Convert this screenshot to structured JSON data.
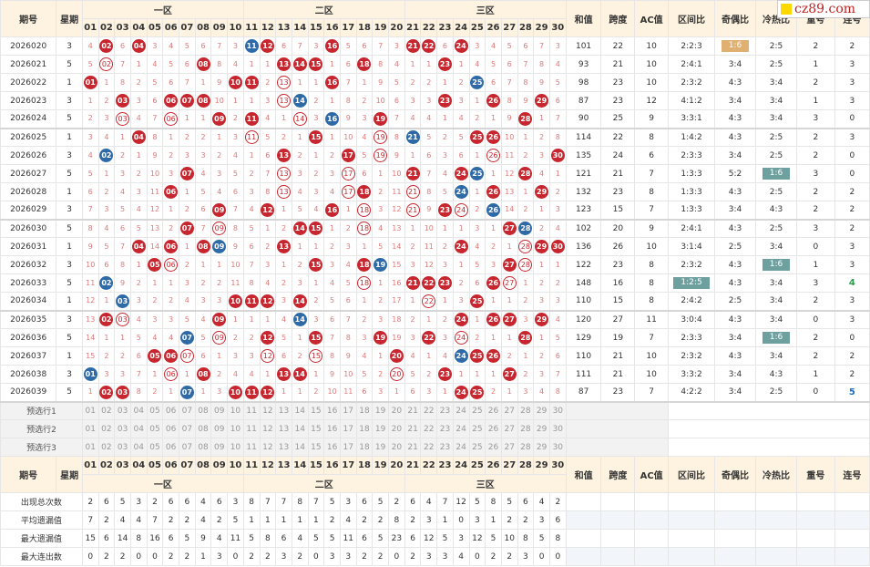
{
  "site": {
    "logo_text": "cz89.com"
  },
  "headers": {
    "issue": "期号",
    "week": "星期",
    "zone1": "一区",
    "zone2": "二区",
    "zone3": "三区",
    "sum": "和值",
    "span": "跨度",
    "ac": "AC值",
    "zone_ratio": "区间比",
    "odd_even": "奇偶比",
    "hot_cold": "冷热比",
    "repeat": "重号",
    "consecutive": "连号"
  },
  "numbers": [
    "01",
    "02",
    "03",
    "04",
    "05",
    "06",
    "07",
    "08",
    "09",
    "10",
    "11",
    "12",
    "13",
    "14",
    "15",
    "16",
    "17",
    "18",
    "19",
    "20",
    "21",
    "22",
    "23",
    "24",
    "25",
    "26",
    "27",
    "28",
    "29",
    "30"
  ],
  "rows": [
    {
      "issue": "2026020",
      "week": "3",
      "balls": [
        2,
        4,
        11,
        12,
        16,
        21,
        22,
        24
      ],
      "blue": [
        11
      ],
      "sum": "101",
      "span": "22",
      "ac": "10",
      "zr": "2:2:3",
      "oe": "1:6",
      "oe_tag": "o",
      "hc": "2:5",
      "rep": "2",
      "con": "2"
    },
    {
      "issue": "2026021",
      "week": "5",
      "balls": [
        2,
        8,
        13,
        14,
        15,
        18,
        23
      ],
      "blue": [
        24
      ],
      "sum": "93",
      "span": "21",
      "ac": "10",
      "zr": "2:4:1",
      "oe": "3:4",
      "hc": "2:5",
      "rep": "1",
      "con": "3"
    },
    {
      "issue": "2026022",
      "week": "1",
      "balls": [
        1,
        10,
        11,
        13,
        16,
        25
      ],
      "blue": [
        25
      ],
      "sum": "98",
      "span": "23",
      "ac": "10",
      "zr": "2:3:2",
      "oe": "4:3",
      "hc": "3:4",
      "rep": "2",
      "con": "3"
    },
    {
      "issue": "2026023",
      "week": "3",
      "balls": [
        3,
        6,
        7,
        8,
        13,
        14,
        23,
        26,
        29
      ],
      "blue": [
        14
      ],
      "sum": "87",
      "span": "23",
      "ac": "12",
      "zr": "4:1:2",
      "oe": "3:4",
      "hc": "3:4",
      "rep": "1",
      "con": "3"
    },
    {
      "issue": "2026024",
      "week": "5",
      "balls": [
        3,
        6,
        9,
        11,
        14,
        16,
        19,
        28
      ],
      "blue": [
        16
      ],
      "sum": "90",
      "span": "25",
      "ac": "9",
      "zr": "3:3:1",
      "oe": "4:3",
      "hc": "3:4",
      "rep": "3",
      "con": "0"
    },
    {
      "issue": "2026025",
      "week": "1",
      "balls": [
        4,
        11,
        15,
        19,
        21,
        25,
        26
      ],
      "blue": [
        21
      ],
      "sum": "114",
      "span": "22",
      "ac": "8",
      "zr": "1:4:2",
      "oe": "4:3",
      "hc": "2:5",
      "rep": "2",
      "con": "3"
    },
    {
      "issue": "2026026",
      "week": "3",
      "balls": [
        2,
        13,
        17,
        19,
        26,
        30
      ],
      "blue": [
        2
      ],
      "sum": "135",
      "span": "24",
      "ac": "6",
      "zr": "2:3:3",
      "oe": "3:4",
      "hc": "2:5",
      "rep": "2",
      "con": "0"
    },
    {
      "issue": "2026027",
      "week": "5",
      "balls": [
        7,
        13,
        17,
        21,
        24,
        25,
        28
      ],
      "blue": [
        25
      ],
      "sum": "121",
      "span": "21",
      "ac": "7",
      "zr": "1:3:3",
      "oe": "5:2",
      "hc": "1:6",
      "hc_tag": "g",
      "rep": "3",
      "con": "0"
    },
    {
      "issue": "2026028",
      "week": "1",
      "balls": [
        6,
        13,
        17,
        18,
        21,
        24,
        26,
        29
      ],
      "blue": [
        24
      ],
      "sum": "132",
      "span": "23",
      "ac": "8",
      "zr": "1:3:3",
      "oe": "4:3",
      "hc": "2:5",
      "rep": "2",
      "con": "2"
    },
    {
      "issue": "2026029",
      "week": "3",
      "balls": [
        9,
        12,
        16,
        18,
        21,
        23,
        24,
        26
      ],
      "blue": [
        26
      ],
      "sum": "123",
      "span": "15",
      "ac": "7",
      "zr": "1:3:3",
      "oe": "3:4",
      "hc": "4:3",
      "rep": "2",
      "con": "2"
    },
    {
      "issue": "2026030",
      "week": "5",
      "balls": [
        7,
        9,
        14,
        15,
        18,
        27,
        28
      ],
      "blue": [
        28
      ],
      "sum": "102",
      "span": "20",
      "ac": "9",
      "zr": "2:4:1",
      "oe": "4:3",
      "hc": "2:5",
      "rep": "3",
      "con": "2"
    },
    {
      "issue": "2026031",
      "week": "1",
      "balls": [
        4,
        6,
        8,
        9,
        13,
        24,
        28,
        29,
        30
      ],
      "blue": [
        9
      ],
      "sum": "136",
      "span": "26",
      "ac": "10",
      "zr": "3:1:4",
      "oe": "2:5",
      "hc": "3:4",
      "rep": "0",
      "con": "3"
    },
    {
      "issue": "2026032",
      "week": "3",
      "balls": [
        5,
        6,
        15,
        18,
        19,
        27,
        28
      ],
      "blue": [
        19
      ],
      "sum": "122",
      "span": "23",
      "ac": "8",
      "zr": "2:3:2",
      "oe": "4:3",
      "hc": "1:6",
      "hc_tag": "g",
      "rep": "1",
      "con": "3"
    },
    {
      "issue": "2026033",
      "week": "5",
      "balls": [
        2,
        18,
        21,
        22,
        23,
        26,
        27
      ],
      "blue": [
        2
      ],
      "sum": "148",
      "span": "16",
      "ac": "8",
      "zr": "1:2:5",
      "zr_tag": "g",
      "oe": "4:3",
      "hc": "3:4",
      "rep": "3",
      "con": "4",
      "con_style": "gr"
    },
    {
      "issue": "2026034",
      "week": "1",
      "balls": [
        3,
        10,
        11,
        12,
        14,
        22,
        25
      ],
      "blue": [
        3
      ],
      "sum": "110",
      "span": "15",
      "ac": "8",
      "zr": "2:4:2",
      "oe": "2:5",
      "hc": "3:4",
      "rep": "2",
      "con": "3"
    },
    {
      "issue": "2026035",
      "week": "3",
      "balls": [
        2,
        3,
        9,
        14,
        24,
        26,
        27,
        29
      ],
      "blue": [
        14
      ],
      "sum": "120",
      "span": "27",
      "ac": "11",
      "zr": "3:0:4",
      "oe": "4:3",
      "hc": "3:4",
      "rep": "0",
      "con": "3"
    },
    {
      "issue": "2026036",
      "week": "5",
      "balls": [
        7,
        9,
        12,
        15,
        19,
        22,
        24,
        28
      ],
      "blue": [
        7
      ],
      "sum": "129",
      "span": "19",
      "ac": "7",
      "zr": "2:3:3",
      "oe": "3:4",
      "hc": "1:6",
      "hc_tag": "g",
      "rep": "2",
      "con": "0"
    },
    {
      "issue": "2026037",
      "week": "1",
      "balls": [
        5,
        6,
        7,
        12,
        15,
        20,
        24,
        25,
        26
      ],
      "blue": [
        24
      ],
      "sum": "110",
      "span": "21",
      "ac": "10",
      "zr": "2:3:2",
      "oe": "4:3",
      "hc": "3:4",
      "rep": "2",
      "con": "2"
    },
    {
      "issue": "2026038",
      "week": "3",
      "balls": [
        1,
        6,
        8,
        13,
        14,
        20,
        23,
        27
      ],
      "blue": [
        1
      ],
      "sum": "111",
      "span": "21",
      "ac": "10",
      "zr": "3:3:2",
      "oe": "3:4",
      "hc": "4:3",
      "rep": "1",
      "con": "2"
    },
    {
      "issue": "2026039",
      "week": "5",
      "balls": [
        2,
        3,
        7,
        10,
        11,
        12,
        24,
        25
      ],
      "blue": [
        7
      ],
      "sum": "87",
      "span": "23",
      "ac": "7",
      "zr": "4:2:2",
      "oe": "3:4",
      "hc": "2:5",
      "rep": "0",
      "con": "5",
      "con_style": "bl"
    }
  ],
  "selections": [
    "预选行1",
    "预选行2",
    "预选行3"
  ],
  "stats": [
    {
      "label": "出现总次数",
      "values": [
        "2",
        "6",
        "5",
        "3",
        "2",
        "6",
        "6",
        "4",
        "6",
        "3",
        "8",
        "7",
        "7",
        "8",
        "7",
        "5",
        "3",
        "6",
        "5",
        "2",
        "6",
        "4",
        "7",
        "12",
        "5",
        "8",
        "5",
        "6",
        "4",
        "2"
      ]
    },
    {
      "label": "平均遗漏值",
      "values": [
        "7",
        "2",
        "4",
        "4",
        "7",
        "2",
        "2",
        "4",
        "2",
        "5",
        "1",
        "1",
        "1",
        "1",
        "1",
        "2",
        "4",
        "2",
        "2",
        "8",
        "2",
        "3",
        "1",
        "0",
        "3",
        "1",
        "2",
        "2",
        "3",
        "6"
      ]
    },
    {
      "label": "最大遗漏值",
      "values": [
        "15",
        "6",
        "14",
        "8",
        "16",
        "6",
        "5",
        "9",
        "4",
        "11",
        "5",
        "8",
        "6",
        "4",
        "5",
        "5",
        "11",
        "6",
        "5",
        "23",
        "6",
        "12",
        "5",
        "3",
        "12",
        "5",
        "10",
        "8",
        "5",
        "8"
      ]
    },
    {
      "label": "最大连出数",
      "values": [
        "0",
        "2",
        "2",
        "0",
        "0",
        "2",
        "2",
        "1",
        "3",
        "0",
        "2",
        "2",
        "3",
        "2",
        "0",
        "3",
        "3",
        "2",
        "2",
        "0",
        "2",
        "3",
        "3",
        "4",
        "0",
        "2",
        "2",
        "3",
        "0",
        "0"
      ]
    }
  ]
}
